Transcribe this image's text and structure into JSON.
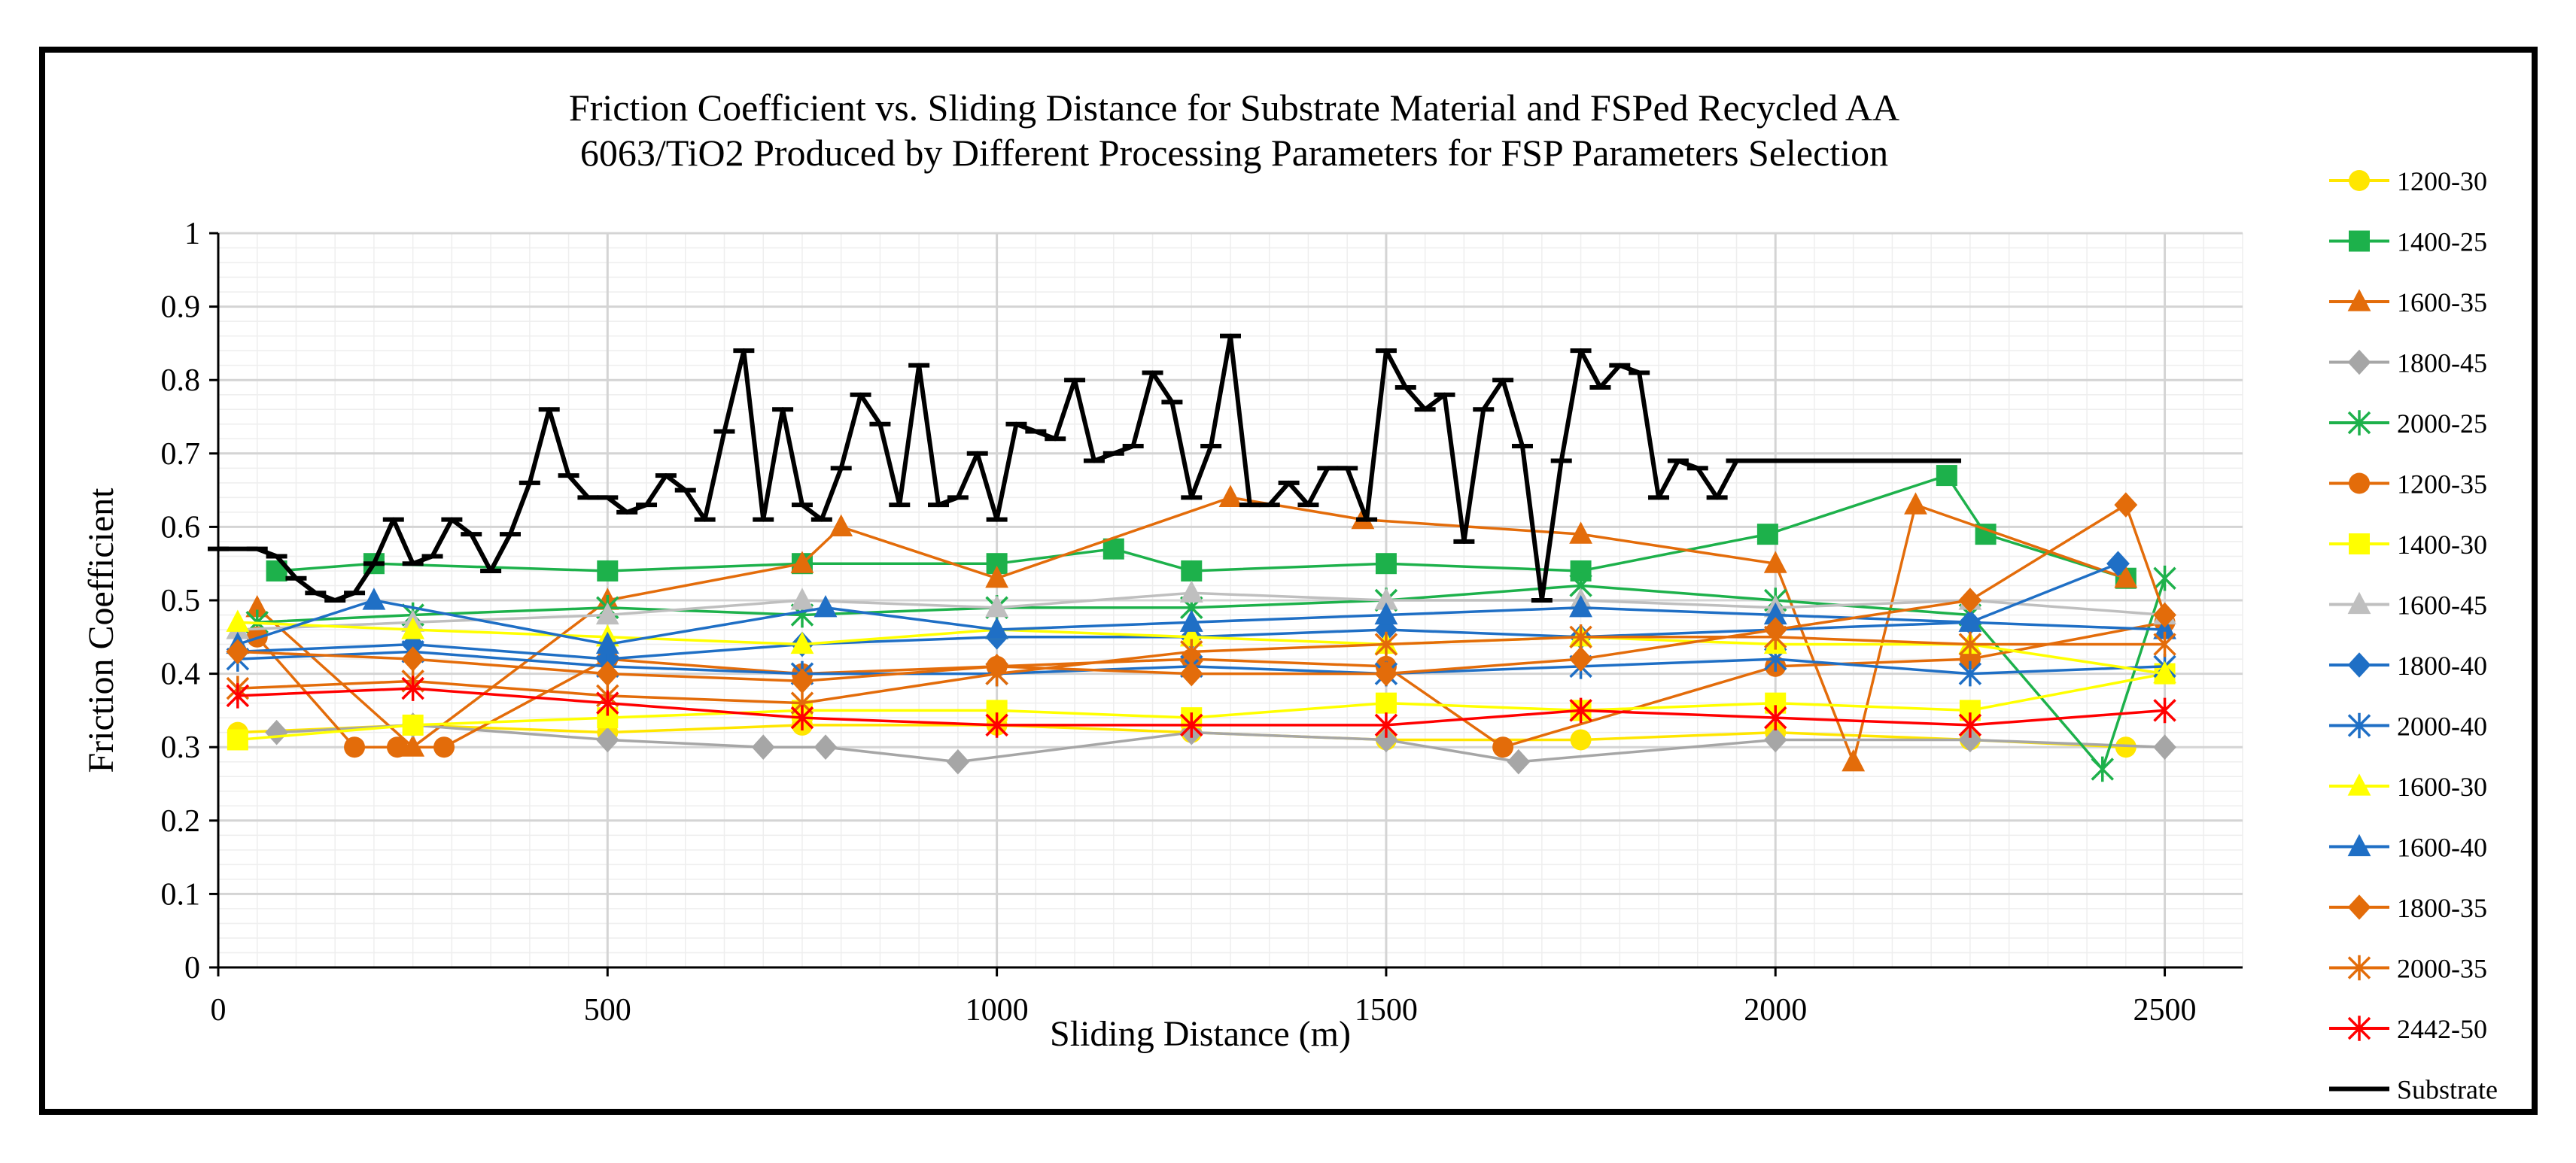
{
  "chart_data": {
    "type": "line",
    "title_lines": [
      "Friction Coefficient vs. Sliding Distance for Substrate Material and FSPed Recycled AA",
      "6063/TiO2 Produced by Different Processing Parameters for FSP Parameters Selection"
    ],
    "xlabel": "Sliding Distance (m)",
    "ylabel": "Friction Coefficient",
    "xlim": [
      0,
      2600
    ],
    "ylim": [
      0,
      1
    ],
    "x_ticks": [
      0,
      500,
      1000,
      1500,
      2000,
      2500
    ],
    "y_ticks": [
      0,
      0.1,
      0.2,
      0.3,
      0.4,
      0.5,
      0.6,
      0.7,
      0.8,
      0.9,
      1
    ],
    "grid": "major-and-minor",
    "legend_position": "right",
    "series": [
      {
        "name": "1200-30",
        "color": "#FFE600",
        "marker": "circle",
        "x": [
          25,
          250,
          500,
          750,
          1000,
          1250,
          1500,
          1750,
          2000,
          2250,
          2450
        ],
        "y": [
          0.32,
          0.33,
          0.32,
          0.33,
          0.33,
          0.32,
          0.31,
          0.31,
          0.32,
          0.31,
          0.3
        ]
      },
      {
        "name": "1400-25",
        "color": "#1DB14B",
        "marker": "square",
        "x": [
          75,
          200,
          500,
          750,
          1000,
          1150,
          1250,
          1500,
          1750,
          1990,
          2220,
          2270,
          2450
        ],
        "y": [
          0.54,
          0.55,
          0.54,
          0.55,
          0.55,
          0.57,
          0.54,
          0.55,
          0.54,
          0.59,
          0.67,
          0.59,
          0.53
        ]
      },
      {
        "name": "1600-35",
        "color": "#E36C0A",
        "marker": "triangle",
        "x": [
          50,
          250,
          500,
          750,
          800,
          1000,
          1300,
          1470,
          1750,
          2000,
          2100,
          2180,
          2450
        ],
        "y": [
          0.49,
          0.3,
          0.5,
          0.55,
          0.6,
          0.53,
          0.64,
          0.61,
          0.59,
          0.55,
          0.28,
          0.63,
          0.53
        ]
      },
      {
        "name": "1800-45",
        "color": "#A6A6A6",
        "marker": "diamond",
        "x": [
          75,
          250,
          500,
          700,
          780,
          950,
          1250,
          1500,
          1670,
          2000,
          2250,
          2500
        ],
        "y": [
          0.32,
          0.33,
          0.31,
          0.3,
          0.3,
          0.28,
          0.32,
          0.31,
          0.28,
          0.31,
          0.31,
          0.3
        ]
      },
      {
        "name": "2000-25",
        "color": "#1DB14B",
        "marker": "star",
        "x": [
          50,
          250,
          500,
          750,
          1000,
          1250,
          1500,
          1750,
          2000,
          2250,
          2420,
          2500
        ],
        "y": [
          0.47,
          0.48,
          0.49,
          0.48,
          0.49,
          0.49,
          0.5,
          0.52,
          0.5,
          0.48,
          0.27,
          0.53
        ]
      },
      {
        "name": "1200-35",
        "color": "#E36C0A",
        "marker": "circle",
        "x": [
          50,
          175,
          230,
          290,
          500,
          750,
          1000,
          1250,
          1500,
          1650,
          2000,
          2250,
          2500
        ],
        "y": [
          0.45,
          0.3,
          0.3,
          0.3,
          0.42,
          0.4,
          0.41,
          0.42,
          0.41,
          0.3,
          0.41,
          0.42,
          0.47
        ]
      },
      {
        "name": "1400-30",
        "color": "#FFFF00",
        "marker": "square",
        "x": [
          25,
          250,
          500,
          750,
          1000,
          1250,
          1500,
          1750,
          2000,
          2250,
          2500
        ],
        "y": [
          0.31,
          0.33,
          0.34,
          0.35,
          0.35,
          0.34,
          0.36,
          0.35,
          0.36,
          0.35,
          0.4
        ]
      },
      {
        "name": "1600-45",
        "color": "#BFBFBF",
        "marker": "triangle",
        "x": [
          25,
          250,
          500,
          750,
          1000,
          1250,
          1500,
          1750,
          2000,
          2250,
          2500
        ],
        "y": [
          0.46,
          0.47,
          0.48,
          0.5,
          0.49,
          0.51,
          0.5,
          0.5,
          0.49,
          0.5,
          0.48
        ]
      },
      {
        "name": "1800-40",
        "color": "#1F6FC5",
        "marker": "diamond",
        "x": [
          25,
          250,
          500,
          750,
          1000,
          1250,
          1500,
          1750,
          2000,
          2250,
          2440
        ],
        "y": [
          0.43,
          0.44,
          0.42,
          0.44,
          0.45,
          0.45,
          0.46,
          0.45,
          0.46,
          0.47,
          0.55
        ]
      },
      {
        "name": "2000-40",
        "color": "#1F6FC5",
        "marker": "star",
        "x": [
          25,
          250,
          500,
          750,
          1000,
          1250,
          1500,
          1750,
          2000,
          2250,
          2500
        ],
        "y": [
          0.42,
          0.43,
          0.41,
          0.4,
          0.4,
          0.41,
          0.4,
          0.41,
          0.42,
          0.4,
          0.41
        ]
      },
      {
        "name": "1600-30",
        "color": "#FFFF00",
        "marker": "triangle",
        "x": [
          25,
          250,
          500,
          750,
          1000,
          1250,
          1500,
          1750,
          2000,
          2250,
          2500
        ],
        "y": [
          0.47,
          0.46,
          0.45,
          0.44,
          0.46,
          0.45,
          0.44,
          0.45,
          0.44,
          0.44,
          0.4
        ]
      },
      {
        "name": "1600-40",
        "color": "#1F6FC5",
        "marker": "triangle",
        "x": [
          25,
          200,
          500,
          780,
          1000,
          1250,
          1500,
          1750,
          2000,
          2250,
          2500
        ],
        "y": [
          0.44,
          0.5,
          0.44,
          0.49,
          0.46,
          0.47,
          0.48,
          0.49,
          0.48,
          0.47,
          0.46
        ]
      },
      {
        "name": "1800-35",
        "color": "#E36C0A",
        "marker": "diamond",
        "x": [
          25,
          250,
          500,
          750,
          1000,
          1250,
          1500,
          1750,
          2000,
          2250,
          2450,
          2500
        ],
        "y": [
          0.43,
          0.42,
          0.4,
          0.39,
          0.41,
          0.4,
          0.4,
          0.42,
          0.46,
          0.5,
          0.63,
          0.48
        ]
      },
      {
        "name": "2000-35",
        "color": "#E36C0A",
        "marker": "star",
        "x": [
          25,
          250,
          500,
          750,
          1000,
          1250,
          1500,
          1750,
          2000,
          2250,
          2500
        ],
        "y": [
          0.38,
          0.39,
          0.37,
          0.36,
          0.4,
          0.43,
          0.44,
          0.45,
          0.45,
          0.44,
          0.44
        ]
      },
      {
        "name": "2442-50",
        "color": "#FF0000",
        "marker": "star",
        "x": [
          25,
          250,
          500,
          750,
          1000,
          1250,
          1500,
          1750,
          2000,
          2250,
          2500
        ],
        "y": [
          0.37,
          0.38,
          0.36,
          0.34,
          0.33,
          0.33,
          0.33,
          0.35,
          0.34,
          0.33,
          0.35
        ]
      },
      {
        "name": "Substrate",
        "color": "#000000",
        "marker": "dash",
        "x": [
          0,
          50,
          75,
          100,
          125,
          150,
          175,
          200,
          225,
          250,
          275,
          300,
          325,
          350,
          375,
          400,
          425,
          450,
          475,
          500,
          525,
          550,
          575,
          600,
          625,
          650,
          675,
          700,
          725,
          750,
          775,
          800,
          825,
          850,
          875,
          900,
          925,
          950,
          975,
          1000,
          1025,
          1050,
          1075,
          1100,
          1125,
          1150,
          1175,
          1200,
          1225,
          1250,
          1275,
          1300,
          1325,
          1350,
          1375,
          1400,
          1425,
          1450,
          1475,
          1500,
          1525,
          1550,
          1575,
          1600,
          1625,
          1650,
          1675,
          1700,
          1725,
          1750,
          1775,
          1800,
          1825,
          1850,
          1875,
          1900,
          1925,
          1950,
          1975,
          2000,
          2025,
          2050,
          2075,
          2100,
          2125,
          2150,
          2175,
          2200,
          2225
        ],
        "y": [
          0.57,
          0.57,
          0.56,
          0.53,
          0.51,
          0.5,
          0.51,
          0.55,
          0.61,
          0.55,
          0.56,
          0.61,
          0.59,
          0.54,
          0.59,
          0.66,
          0.76,
          0.67,
          0.64,
          0.64,
          0.62,
          0.63,
          0.67,
          0.65,
          0.61,
          0.73,
          0.84,
          0.61,
          0.76,
          0.63,
          0.61,
          0.68,
          0.78,
          0.74,
          0.63,
          0.82,
          0.63,
          0.64,
          0.7,
          0.61,
          0.74,
          0.73,
          0.72,
          0.8,
          0.69,
          0.7,
          0.71,
          0.81,
          0.77,
          0.64,
          0.71,
          0.86,
          0.63,
          0.63,
          0.66,
          0.63,
          0.68,
          0.68,
          0.61,
          0.84,
          0.79,
          0.76,
          0.78,
          0.58,
          0.76,
          0.8,
          0.71,
          0.5,
          0.69,
          0.84,
          0.79,
          0.82,
          0.81,
          0.64,
          0.69,
          0.68,
          0.64,
          0.69,
          0.69,
          0.69,
          0.69,
          0.69,
          0.69,
          0.69,
          0.69,
          0.69,
          0.69,
          0.69,
          0.69
        ]
      }
    ]
  }
}
